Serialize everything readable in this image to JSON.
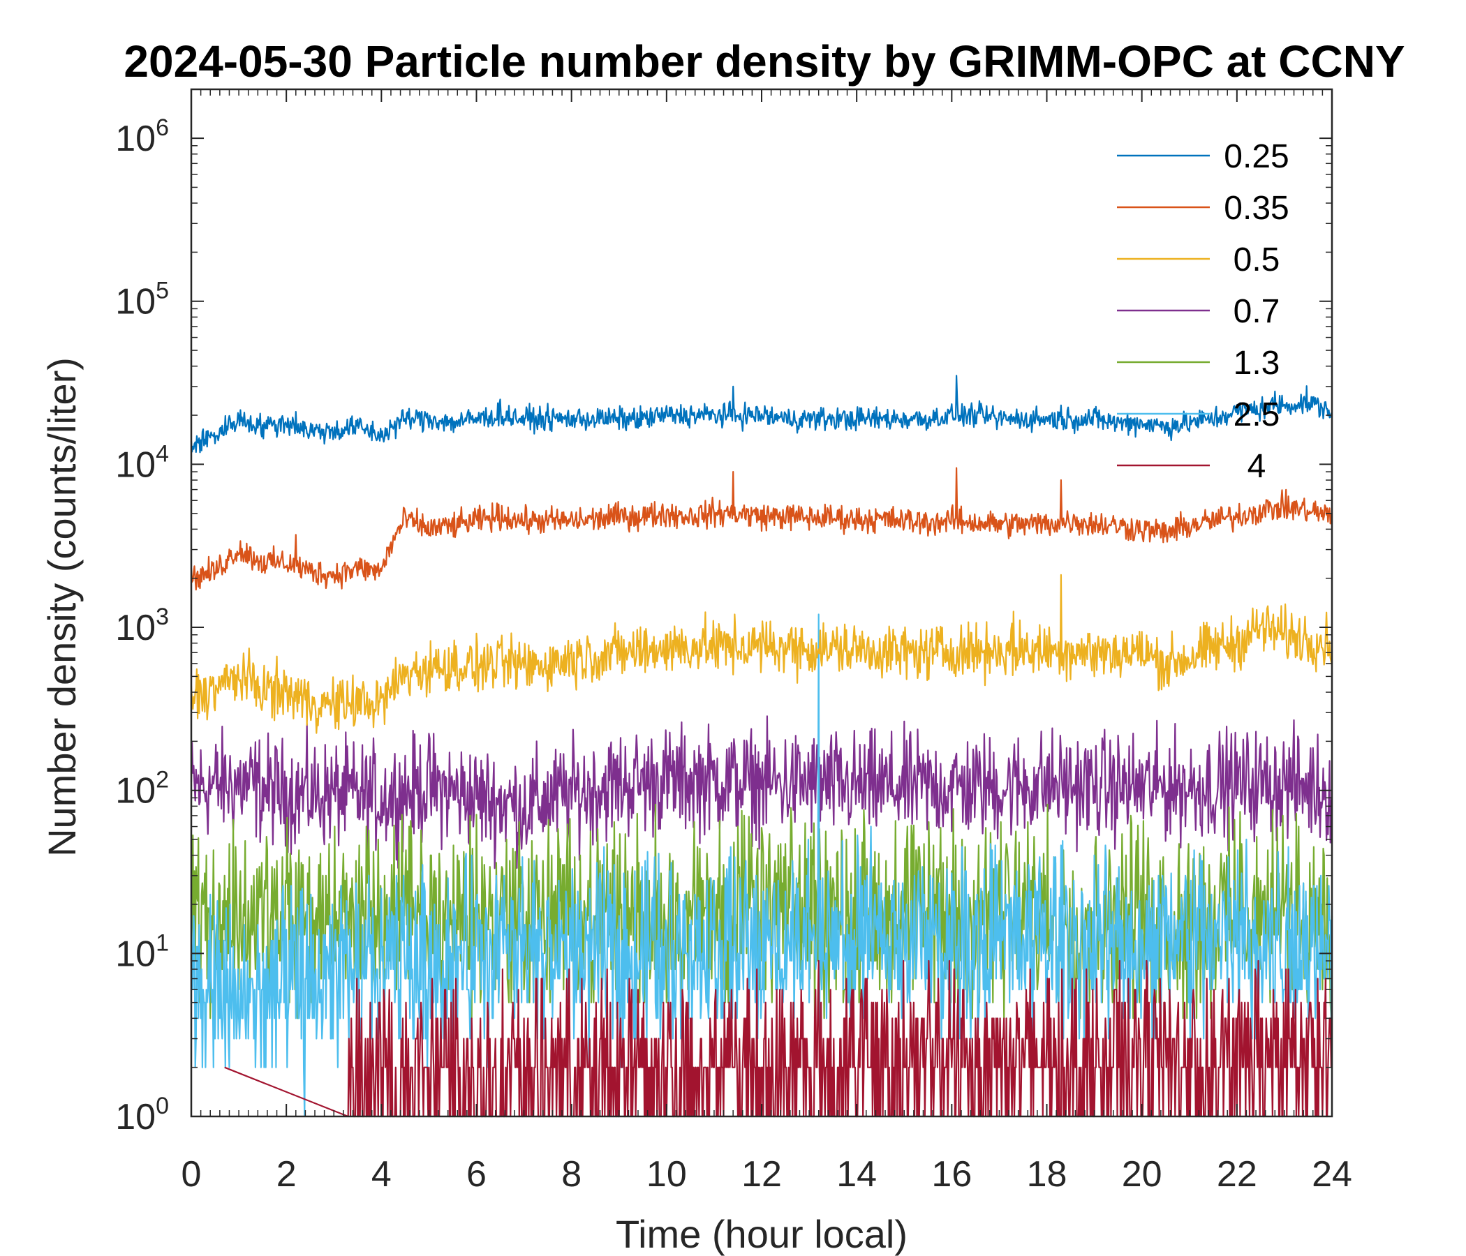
{
  "chart_data": {
    "type": "line",
    "title": "2024-05-30 Particle number density by GRIMM-OPC at CCNY",
    "xlabel": "Time (hour local)",
    "ylabel": "Number density (counts/liter)",
    "xlim": [
      0,
      24
    ],
    "ylim_log10": [
      0,
      6.3
    ],
    "yscale": "log",
    "xticks": [
      0,
      2,
      4,
      6,
      8,
      10,
      12,
      14,
      16,
      18,
      20,
      22,
      24
    ],
    "xtick_labels": [
      "0",
      "2",
      "4",
      "6",
      "8",
      "10",
      "12",
      "14",
      "16",
      "18",
      "20",
      "22",
      "24"
    ],
    "yticks_exponent": [
      0,
      1,
      2,
      3,
      4,
      5,
      6
    ],
    "ytick_base": "10",
    "yticks_exp_labels": [
      "0",
      "1",
      "2",
      "3",
      "4",
      "5",
      "6"
    ],
    "legend_position": "top-right",
    "series": [
      {
        "name": "0.25",
        "color": "#0072BD",
        "x": [
          0,
          0.5,
          1,
          1.5,
          2,
          2.5,
          3,
          3.5,
          4,
          4.5,
          5,
          5.5,
          6,
          6.5,
          7,
          7.5,
          8,
          8.5,
          9,
          9.5,
          10,
          10.5,
          11,
          11.5,
          12,
          12.5,
          13,
          13.5,
          14,
          14.5,
          15,
          15.5,
          16,
          16.5,
          17,
          17.5,
          18,
          18.5,
          19,
          19.5,
          20,
          20.5,
          21,
          21.5,
          22,
          22.5,
          23,
          23.5,
          24
        ],
        "values": [
          13000,
          15000,
          19000,
          17000,
          18000,
          16000,
          16000,
          17000,
          15000,
          19000,
          19000,
          18000,
          19000,
          20000,
          19000,
          19000,
          19000,
          19000,
          19000,
          19000,
          20000,
          20000,
          20000,
          20000,
          20000,
          19000,
          19000,
          19000,
          19000,
          19000,
          19000,
          19000,
          20000,
          20000,
          19000,
          19000,
          19000,
          19000,
          19000,
          18000,
          18000,
          17000,
          18000,
          19000,
          21000,
          22000,
          23000,
          24000,
          21000
        ],
        "spikes": [
          [
            2.2,
            21000
          ],
          [
            6.5,
            25000
          ],
          [
            11.4,
            30000
          ],
          [
            16.1,
            35000
          ],
          [
            18.3,
            23000
          ],
          [
            22.8,
            28000
          ]
        ]
      },
      {
        "name": "0.35",
        "color": "#D95319",
        "x": [
          0,
          0.5,
          1,
          1.5,
          2,
          2.5,
          3,
          3.5,
          4,
          4.5,
          5,
          5.5,
          6,
          6.5,
          7,
          7.5,
          8,
          8.5,
          9,
          9.5,
          10,
          10.5,
          11,
          11.5,
          12,
          12.5,
          13,
          13.5,
          14,
          14.5,
          15,
          15.5,
          16,
          16.5,
          17,
          17.5,
          18,
          18.5,
          19,
          19.5,
          20,
          20.5,
          21,
          21.5,
          22,
          22.5,
          23,
          23.5,
          24
        ],
        "values": [
          2000,
          2200,
          3000,
          2500,
          2500,
          2200,
          2100,
          2300,
          2200,
          4600,
          4000,
          4200,
          4500,
          4800,
          4500,
          4500,
          4500,
          4600,
          4800,
          4800,
          5000,
          4800,
          5000,
          5000,
          4800,
          4800,
          4700,
          4700,
          4600,
          4600,
          4500,
          4400,
          4500,
          4400,
          4300,
          4300,
          4300,
          4500,
          4300,
          4200,
          4000,
          3800,
          4200,
          4500,
          4800,
          5200,
          5500,
          5200,
          4800
        ],
        "spikes": [
          [
            2.2,
            3700
          ],
          [
            11.4,
            9000
          ],
          [
            16.1,
            9500
          ],
          [
            18.3,
            8000
          ]
        ]
      },
      {
        "name": "0.5",
        "color": "#EDB120",
        "x": [
          0,
          0.5,
          1,
          1.5,
          2,
          2.5,
          3,
          3.5,
          4,
          4.5,
          5,
          5.5,
          6,
          6.5,
          7,
          7.5,
          8,
          8.5,
          9,
          9.5,
          10,
          10.5,
          11,
          11.5,
          12,
          12.5,
          13,
          13.5,
          14,
          14.5,
          15,
          15.5,
          16,
          16.5,
          17,
          17.5,
          18,
          18.5,
          19,
          19.5,
          20,
          20.5,
          21,
          21.5,
          22,
          22.5,
          23,
          23.5,
          24
        ],
        "values": [
          380,
          420,
          500,
          420,
          400,
          350,
          330,
          350,
          340,
          520,
          560,
          580,
          580,
          600,
          580,
          600,
          640,
          680,
          700,
          720,
          750,
          760,
          760,
          760,
          760,
          760,
          740,
          740,
          730,
          720,
          700,
          700,
          720,
          720,
          720,
          720,
          720,
          720,
          700,
          700,
          700,
          600,
          650,
          750,
          800,
          1000,
          900,
          850,
          800
        ],
        "spikes": [
          [
            17.3,
            1250
          ],
          [
            18.3,
            2100
          ]
        ]
      },
      {
        "name": "0.7",
        "color": "#7E2F8E",
        "x": [
          0,
          1,
          2,
          3,
          4,
          5,
          6,
          7,
          8,
          9,
          10,
          11,
          12,
          13,
          14,
          15,
          16,
          17,
          18,
          19,
          20,
          21,
          22,
          23,
          24
        ],
        "values": [
          105,
          110,
          95,
          95,
          90,
          105,
          90,
          80,
          95,
          110,
          115,
          115,
          110,
          110,
          105,
          105,
          105,
          105,
          110,
          105,
          105,
          105,
          110,
          110,
          100
        ]
      },
      {
        "name": "1.3",
        "color": "#77AC30",
        "x": [
          0,
          2,
          4,
          6,
          8,
          10,
          12,
          14,
          16,
          18,
          20,
          22,
          24
        ],
        "values": [
          17,
          16,
          17,
          17,
          17,
          17,
          18,
          18,
          17,
          17,
          17,
          17,
          17
        ]
      },
      {
        "name": "2.5",
        "color": "#4DBEEE",
        "x": [
          0,
          1,
          2,
          3,
          4,
          5,
          6,
          7,
          8,
          9,
          10,
          11,
          12,
          13,
          14,
          15,
          16,
          17,
          18,
          19,
          20,
          21,
          22,
          23,
          24
        ],
        "values": [
          6,
          5,
          6,
          7,
          8,
          9,
          10,
          10,
          10,
          10,
          11,
          11,
          11,
          12,
          12,
          12,
          12,
          12,
          12,
          11,
          12,
          12,
          12,
          12,
          12
        ],
        "spikes": [
          [
            13.2,
            1200
          ],
          [
            14.3,
            60
          ],
          [
            22.2,
            50
          ]
        ]
      },
      {
        "name": "4",
        "color": "#A2142F",
        "x": [
          0,
          2,
          3.3,
          4,
          6,
          8,
          10,
          12,
          14,
          16,
          18,
          20,
          22,
          24
        ],
        "values": [
          1,
          1,
          1.5,
          1.8,
          1.8,
          1.8,
          2.0,
          2.0,
          2.2,
          2.2,
          2.2,
          2.2,
          2.2,
          2.2
        ]
      }
    ]
  }
}
